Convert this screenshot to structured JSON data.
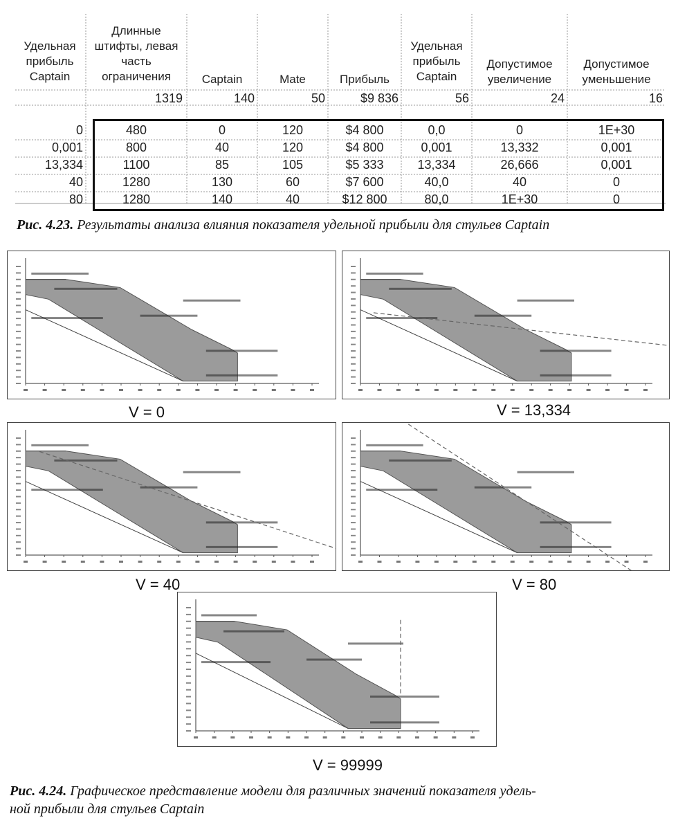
{
  "table": {
    "headers": [
      "Удельная прибыль Captain",
      "Длинные штифты, левая часть ограничения",
      "Captain",
      "Mate",
      "Прибыль",
      "Удельная прибыль Captain",
      "Допустимое увеличение",
      "Допустимое уменьшение"
    ],
    "summary": [
      "",
      "1319",
      "140",
      "50",
      "$9 836",
      "56",
      "24",
      "16"
    ],
    "rows": [
      [
        "0",
        "480",
        "0",
        "120",
        "$4 800",
        "0,0",
        "0",
        "1E+30"
      ],
      [
        "0,001",
        "800",
        "40",
        "120",
        "$4 800",
        "0,001",
        "13,332",
        "0,001"
      ],
      [
        "13,334",
        "1100",
        "85",
        "105",
        "$5 333",
        "13,334",
        "26,666",
        "0,001"
      ],
      [
        "40",
        "1280",
        "130",
        "60",
        "$7 600",
        "40,0",
        "40",
        "0"
      ],
      [
        "80",
        "1280",
        "140",
        "40",
        "$12 800",
        "80,0",
        "1E+30",
        "0"
      ]
    ]
  },
  "caption_1": {
    "number": "Рис. 4.23.",
    "text": "Результаты анализа влияния показателя удельной прибыли для стульев Captain"
  },
  "panels": [
    {
      "label": "V = 0",
      "objective_slope": 0
    },
    {
      "label": "V = 13,334",
      "objective_slope": 0.27
    },
    {
      "label": "V = 40",
      "objective_slope": 0.8
    },
    {
      "label": "V = 80",
      "objective_slope": 1.6
    },
    {
      "label": "V = 99999",
      "objective_slope": 999
    }
  ],
  "caption_2": {
    "number": "Рис. 4.24.",
    "text_line1": "Графическое представление модели для различных значений показателя удель-",
    "text_line2": "ной прибыли для стульев Captain"
  }
}
